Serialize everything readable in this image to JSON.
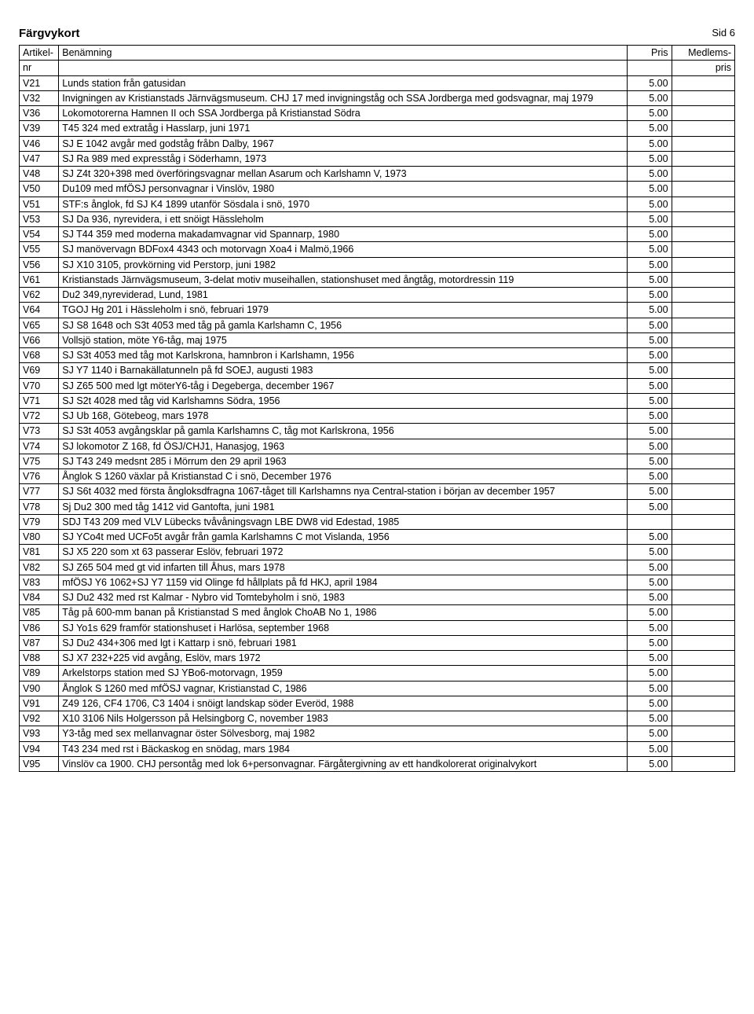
{
  "page_label": "Sid 6",
  "section_title": "Färgvykort",
  "columns": {
    "nr_top": "Artikel-",
    "nr_bot": "nr",
    "ben": "Benämning",
    "pris": "Pris",
    "mem_top": "Medlems-",
    "mem_bot": "pris"
  },
  "rows": [
    {
      "nr": "V21",
      "desc": "Lunds station från gatusidan",
      "pris": "5.00",
      "mem": ""
    },
    {
      "nr": "V32",
      "desc": "Invigningen av Kristianstads Järnvägsmuseum. CHJ 17 med invigningståg och SSA Jordberga med godsvagnar, maj 1979",
      "pris": "5.00",
      "mem": ""
    },
    {
      "nr": "V36",
      "desc": "Lokomotorerna Hamnen II och SSA Jordberga på Kristianstad Södra",
      "pris": "5.00",
      "mem": ""
    },
    {
      "nr": "V39",
      "desc": "T45 324 med extratåg i Hasslarp, juni 1971",
      "pris": "5.00",
      "mem": ""
    },
    {
      "nr": "V46",
      "desc": "SJ E 1042 avgår med godståg fråbn Dalby, 1967",
      "pris": "5.00",
      "mem": ""
    },
    {
      "nr": "V47",
      "desc": "SJ Ra 989 med expresståg i Söderhamn, 1973",
      "pris": "5.00",
      "mem": ""
    },
    {
      "nr": "V48",
      "desc": "SJ Z4t 320+398 med överföringsvagnar mellan Asarum och Karlshamn V, 1973",
      "pris": "5.00",
      "mem": ""
    },
    {
      "nr": "V50",
      "desc": "Du109 med mfÖSJ personvagnar i Vinslöv, 1980",
      "pris": "5.00",
      "mem": ""
    },
    {
      "nr": "V51",
      "desc": "STF:s ånglok, fd SJ K4 1899 utanför Sösdala i snö, 1970",
      "pris": "5.00",
      "mem": ""
    },
    {
      "nr": "V53",
      "desc": "SJ Da 936, nyrevidera, i ett snöigt Hässleholm",
      "pris": "5.00",
      "mem": ""
    },
    {
      "nr": "V54",
      "desc": "SJ T44 359 med moderna makadamvagnar vid Spannarp, 1980",
      "pris": "5.00",
      "mem": ""
    },
    {
      "nr": "V55",
      "desc": "SJ manövervagn BDFox4 4343 och motorvagn Xoa4 i Malmö,1966",
      "pris": "5.00",
      "mem": ""
    },
    {
      "nr": "V56",
      "desc": "SJ X10 3105, provkörning vid Perstorp, juni 1982",
      "pris": "5.00",
      "mem": ""
    },
    {
      "nr": "V61",
      "desc": "Kristianstads Järnvägsmuseum, 3-delat motiv museihallen, stationshuset  med ångtåg, motordressin 119",
      "pris": "5.00",
      "mem": ""
    },
    {
      "nr": "V62",
      "desc": "Du2 349,nyreviderad, Lund, 1981",
      "pris": "5.00",
      "mem": ""
    },
    {
      "nr": "V64",
      "desc": "TGOJ Hg 201 i Hässleholm i snö, februari 1979",
      "pris": "5.00",
      "mem": ""
    },
    {
      "nr": "V65",
      "desc": "SJ S8 1648 och S3t 4053 med tåg på gamla Karlshamn C, 1956",
      "pris": "5.00",
      "mem": ""
    },
    {
      "nr": "V66",
      "desc": "Vollsjö station, möte Y6-tåg, maj 1975",
      "pris": "5.00",
      "mem": ""
    },
    {
      "nr": "V68",
      "desc": "SJ S3t 4053 med tåg mot Karlskrona, hamnbron i Karlshamn, 1956",
      "pris": "5.00",
      "mem": ""
    },
    {
      "nr": "V69",
      "desc": "SJ Y7 1140 i Barnakällatunneln på fd SOEJ, augusti 1983",
      "pris": "5.00",
      "mem": ""
    },
    {
      "nr": "V70",
      "desc": "SJ Z65 500 med lgt möterY6-tåg i Degeberga, december 1967",
      "pris": "5.00",
      "mem": ""
    },
    {
      "nr": "V71",
      "desc": "SJ S2t 4028 med tåg vid Karlshamns Södra, 1956",
      "pris": "5.00",
      "mem": ""
    },
    {
      "nr": "V72",
      "desc": "SJ Ub 168, Götebeog, mars 1978",
      "pris": "5.00",
      "mem": ""
    },
    {
      "nr": "V73",
      "desc": "SJ S3t 4053 avgångsklar på gamla Karlshamns C, tåg mot Karlskrona, 1956",
      "pris": "5.00",
      "mem": ""
    },
    {
      "nr": "V74",
      "desc": "SJ lokomotor Z 168, fd ÖSJ/CHJ1, Hanasjog, 1963",
      "pris": "5.00",
      "mem": ""
    },
    {
      "nr": "V75",
      "desc": "SJ T43 249 medsnt 285 i Mörrum den 29 april 1963",
      "pris": "5.00",
      "mem": ""
    },
    {
      "nr": "V76",
      "desc": "Ånglok S 1260 växlar på Kristianstad C i snö, December 1976",
      "pris": "5.00",
      "mem": ""
    },
    {
      "nr": "V77",
      "desc": "SJ S6t 4032 med första ångloksdfragna 1067-tåget till Karlshamns nya Central-station i början av december 1957",
      "pris": "5.00",
      "mem": ""
    },
    {
      "nr": "V78",
      "desc": "Sj Du2 300 med tåg 1412 vid Gantofta, juni 1981",
      "pris": "5.00",
      "mem": ""
    },
    {
      "nr": "V79",
      "desc": "SDJ T43 209 med VLV Lübecks tvåvåningsvagn LBE DW8 vid Edestad, 1985",
      "pris": "",
      "mem": ""
    },
    {
      "nr": "V80",
      "desc": "SJ YCo4t med UCFo5t avgår från gamla Karlshamns C mot Vislanda, 1956",
      "pris": "5.00",
      "mem": ""
    },
    {
      "nr": "V81",
      "desc": "SJ X5 220 som xt 63 passerar Eslöv, februari 1972",
      "pris": "5.00",
      "mem": ""
    },
    {
      "nr": "V82",
      "desc": "SJ Z65 504 med gt vid infarten till Åhus, mars 1978",
      "pris": "5.00",
      "mem": ""
    },
    {
      "nr": "V83",
      "desc": "mfÖSJ Y6 1062+SJ Y7 1159 vid Olinge fd hållplats på fd HKJ, april 1984",
      "pris": "5.00",
      "mem": ""
    },
    {
      "nr": "V84",
      "desc": "SJ Du2 432 med rst Kalmar - Nybro vid Tomtebyholm i snö, 1983",
      "pris": "5.00",
      "mem": ""
    },
    {
      "nr": "V85",
      "desc": "Tåg på 600-mm banan på Kristianstad S med ånglok ChoAB No 1, 1986",
      "pris": "5.00",
      "mem": ""
    },
    {
      "nr": "V86",
      "desc": "SJ Yo1s 629 framför stationshuset i Harlösa, september 1968",
      "pris": "5.00",
      "mem": ""
    },
    {
      "nr": "V87",
      "desc": "SJ Du2 434+306 med lgt i Kattarp i snö, februari 1981",
      "pris": "5.00",
      "mem": ""
    },
    {
      "nr": "V88",
      "desc": "SJ  X7 232+225 vid avgång, Eslöv, mars 1972",
      "pris": "5.00",
      "mem": ""
    },
    {
      "nr": "V89",
      "desc": "Arkelstorps station med SJ YBo6-motorvagn, 1959",
      "pris": "5.00",
      "mem": ""
    },
    {
      "nr": "V90",
      "desc": "Ånglok S 1260 med mfÖSJ vagnar, Kristianstad C, 1986",
      "pris": "5.00",
      "mem": ""
    },
    {
      "nr": "V91",
      "desc": "Z49 126, CF4 1706, C3 1404 i snöigt landskap söder Everöd, 1988",
      "pris": "5.00",
      "mem": ""
    },
    {
      "nr": "V92",
      "desc": "X10 3106 Nils Holgersson på Helsingborg C, november 1983",
      "pris": "5.00",
      "mem": ""
    },
    {
      "nr": "V93",
      "desc": "Y3-tåg med sex mellanvagnar öster Sölvesborg, maj 1982",
      "pris": "5.00",
      "mem": ""
    },
    {
      "nr": "V94",
      "desc": "T43 234 med rst i Bäckaskog en snödag, mars 1984",
      "pris": "5.00",
      "mem": ""
    },
    {
      "nr": "V95",
      "desc": "Vinslöv ca 1900. CHJ persontåg med lok 6+personvagnar. Färgåtergivning av ett handkolorerat originalvykort",
      "pris": "5.00",
      "mem": ""
    }
  ]
}
